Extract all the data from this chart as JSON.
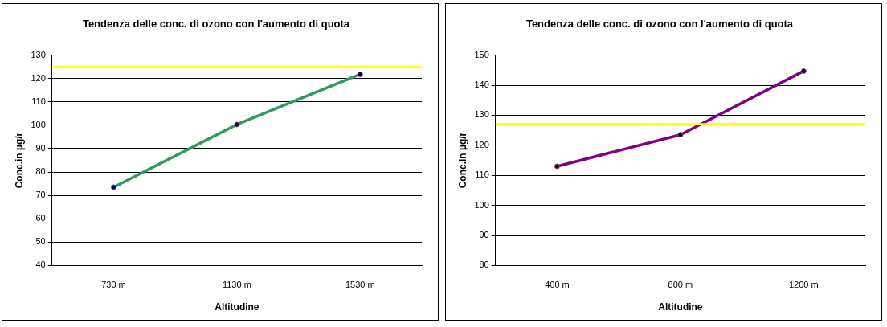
{
  "chart_data": [
    {
      "type": "line",
      "title": "Tendenza delle conc. di ozono con l'aumento di quota",
      "xlabel": "Altitudine",
      "ylabel": "Conc.in µg/r",
      "categories": [
        "730 m",
        "1130 m",
        "1530 m"
      ],
      "series": [
        {
          "color": "#2e9a5e",
          "values": [
            73.5,
            100.3,
            121.8
          ]
        }
      ],
      "ylim": [
        40,
        130
      ],
      "yticks": [
        40,
        50,
        60,
        70,
        80,
        90,
        100,
        110,
        120,
        130
      ],
      "grid": "y",
      "marker": "circle",
      "legend": false,
      "ref_lines": [
        {
          "axis": "y",
          "value": 125,
          "color": "#ffff00"
        }
      ]
    },
    {
      "type": "line",
      "title": "Tendenza delle conc. di ozono con l'aumento di quota",
      "xlabel": "Altitudine",
      "ylabel": "Conc.in µg/r",
      "categories": [
        "400 m",
        "800 m",
        "1200 m"
      ],
      "series": [
        {
          "color": "#800080",
          "values": [
            113,
            123.5,
            144.7
          ]
        }
      ],
      "ylim": [
        80,
        150
      ],
      "yticks": [
        80,
        90,
        100,
        110,
        120,
        130,
        140,
        150
      ],
      "grid": "y",
      "marker": "circle",
      "legend": false,
      "ref_lines": [
        {
          "axis": "y",
          "value": 127,
          "color": "#ffff00"
        }
      ]
    }
  ]
}
